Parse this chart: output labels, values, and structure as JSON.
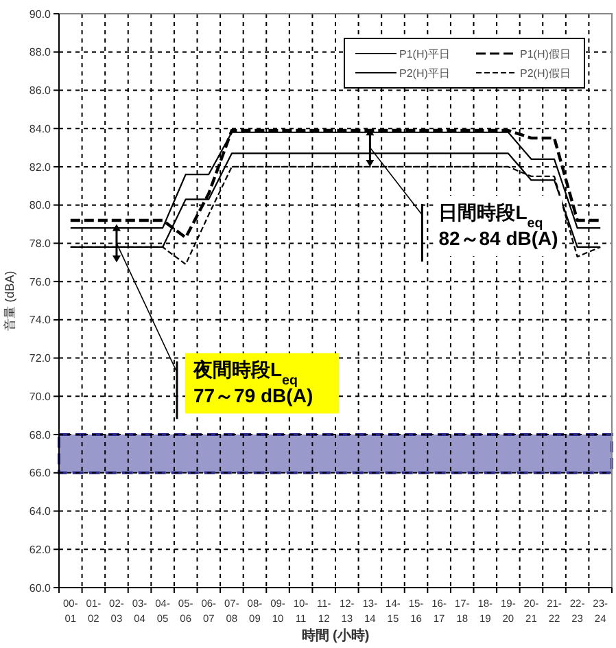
{
  "chart_data": {
    "type": "line",
    "xlabel": "時間 (小時)",
    "ylabel": "音量 (dBA)",
    "categories": [
      "00-01",
      "01-02",
      "02-03",
      "03-04",
      "04-05",
      "05-06",
      "06-07",
      "07-08",
      "08-09",
      "09-10",
      "10-11",
      "11-12",
      "12-13",
      "13-14",
      "14-15",
      "15-16",
      "16-17",
      "17-18",
      "18-19",
      "19-20",
      "20-21",
      "21-22",
      "22-23",
      "23-24"
    ],
    "series": [
      {
        "name": "P1(H)平日",
        "color": "#000000",
        "line_style": "solid",
        "values": [
          78.8,
          78.8,
          78.8,
          78.8,
          78.8,
          81.6,
          81.6,
          83.8,
          83.8,
          83.8,
          83.8,
          83.8,
          83.8,
          83.8,
          83.8,
          83.8,
          83.8,
          83.8,
          83.8,
          83.8,
          82.4,
          82.4,
          78.8,
          78.8
        ]
      },
      {
        "name": "P1(H)假日",
        "color": "#000000",
        "line_style": "dashed",
        "values": [
          79.2,
          79.2,
          79.2,
          79.2,
          79.2,
          78.3,
          80.6,
          83.9,
          83.9,
          83.9,
          83.9,
          83.9,
          83.9,
          83.9,
          83.9,
          83.9,
          83.9,
          83.9,
          83.9,
          83.9,
          83.5,
          83.5,
          79.2,
          79.2
        ]
      },
      {
        "name": "P2(H)平日",
        "color": "#000000",
        "line_style": "solid",
        "values": [
          77.8,
          77.8,
          77.8,
          77.8,
          77.8,
          80.3,
          80.3,
          82.7,
          82.7,
          82.7,
          82.7,
          82.7,
          82.7,
          82.7,
          82.7,
          82.7,
          82.7,
          82.7,
          82.7,
          82.7,
          81.3,
          81.3,
          77.8,
          77.8
        ]
      },
      {
        "name": "P2(H)假日",
        "color": "#000000",
        "line_style": "dashed",
        "values": [
          77.8,
          77.8,
          77.8,
          77.8,
          77.8,
          76.9,
          79.5,
          82.0,
          82.0,
          82.0,
          82.0,
          82.0,
          82.0,
          82.0,
          82.0,
          82.0,
          82.0,
          82.0,
          82.0,
          82.0,
          81.5,
          81.5,
          77.3,
          77.8
        ]
      }
    ],
    "ylim": [
      60,
      90
    ],
    "yticks": [
      {
        "value": 60,
        "label": "60.0"
      },
      {
        "value": 62,
        "label": "62.0"
      },
      {
        "value": 64,
        "label": "64.0"
      },
      {
        "value": 66,
        "label": "66.0"
      },
      {
        "value": 68,
        "label": "68.0"
      },
      {
        "value": 70,
        "label": "70.0"
      },
      {
        "value": 72,
        "label": "72.0"
      },
      {
        "value": 74,
        "label": "74.0"
      },
      {
        "value": 76,
        "label": "76.0"
      },
      {
        "value": 78,
        "label": "78.0"
      },
      {
        "value": 80,
        "label": "80.0"
      },
      {
        "value": 82,
        "label": "82.0"
      },
      {
        "value": 84,
        "label": "84.0"
      },
      {
        "value": 86,
        "label": "86.0"
      },
      {
        "value": 88,
        "label": "88.0"
      },
      {
        "value": 90,
        "label": "90.0"
      }
    ],
    "bands": [
      {
        "axis": "y",
        "from": 66,
        "to": 68,
        "color": "#9999cc"
      }
    ],
    "annotations": [
      {
        "text": "夜間時段L$_{eq}$\n77～79 dB(A)",
        "x": "02-03",
        "y": 78
      },
      {
        "text": "日間時段L$_{eq}$\n82～84 dB(A)",
        "x": "13-14",
        "y": 83
      }
    ],
    "grid": true,
    "legend": "top right",
    "marker": "none"
  }
}
